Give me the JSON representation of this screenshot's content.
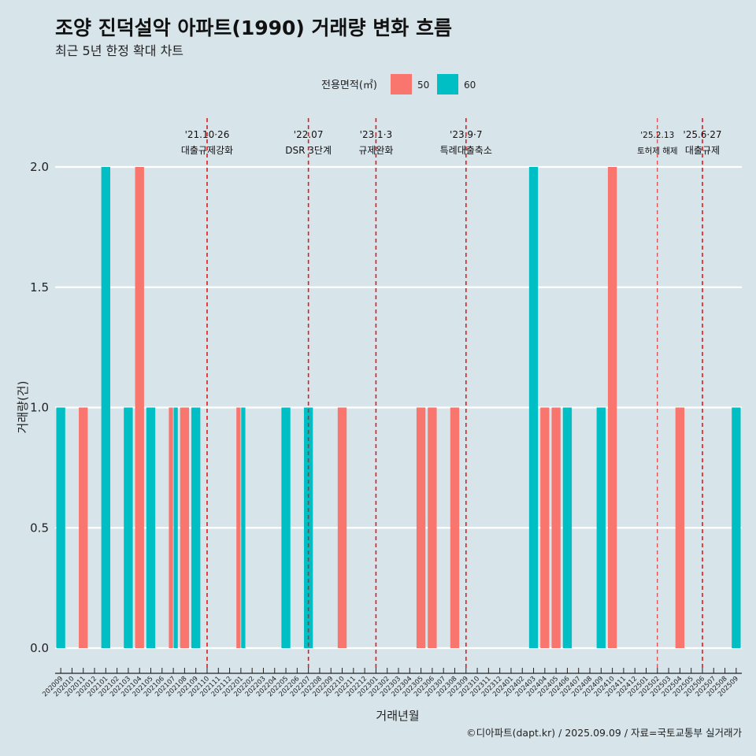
{
  "chart_data": {
    "type": "bar",
    "title": "조양 진덕설악 아파트(1990) 거래량 변화 흐름",
    "subtitle": "최근 5년 한정 확대 차트",
    "xlabel": "거래년월",
    "ylabel": "거래량(건)",
    "ylim": [
      0,
      2
    ],
    "yticks": [
      "0.0",
      "0.5",
      "1.0",
      "1.5",
      "2.0"
    ],
    "grid": true,
    "legend": {
      "title": "전용면적(㎡)",
      "placement": "top-center",
      "entries": [
        "50",
        "60"
      ]
    },
    "categories": [
      "202009",
      "202010",
      "202011",
      "202012",
      "202101",
      "202102",
      "202103",
      "202104",
      "202105",
      "202106",
      "202107",
      "202108",
      "202109",
      "202110",
      "202111",
      "202112",
      "202201",
      "202202",
      "202203",
      "202204",
      "202205",
      "202206",
      "202207",
      "202208",
      "202209",
      "202210",
      "202211",
      "202212",
      "202301",
      "202302",
      "202303",
      "202304",
      "202305",
      "202306",
      "202307",
      "202308",
      "202309",
      "202310",
      "202311",
      "202312",
      "202401",
      "202402",
      "202403",
      "202404",
      "202405",
      "202406",
      "202407",
      "202408",
      "202409",
      "202410",
      "202411",
      "202412",
      "202501",
      "202502",
      "202503",
      "202504",
      "202505",
      "202506",
      "202507",
      "202508",
      "202509"
    ],
    "series": [
      {
        "name": "50",
        "color": "#f8766d",
        "values": [
          0,
          0,
          1,
          0,
          0,
          0,
          0,
          2,
          0,
          0,
          1,
          1,
          0,
          0,
          0,
          0,
          1,
          0,
          0,
          0,
          0,
          0,
          0,
          0,
          0,
          1,
          0,
          0,
          0,
          0,
          0,
          0,
          1,
          1,
          0,
          1,
          0,
          0,
          0,
          0,
          0,
          0,
          0,
          1,
          1,
          0,
          0,
          0,
          0,
          2,
          0,
          0,
          0,
          0,
          0,
          1,
          0,
          0,
          0,
          0,
          0
        ]
      },
      {
        "name": "60",
        "color": "#00bfc4",
        "values": [
          1,
          0,
          0,
          0,
          2,
          0,
          1,
          0,
          1,
          0,
          1,
          0,
          1,
          0,
          0,
          0,
          1,
          0,
          0,
          0,
          1,
          0,
          1,
          0,
          0,
          0,
          0,
          0,
          0,
          0,
          0,
          0,
          0,
          0,
          0,
          0,
          0,
          0,
          0,
          0,
          0,
          0,
          2,
          0,
          0,
          1,
          0,
          0,
          1,
          0,
          0,
          0,
          0,
          0,
          0,
          0,
          0,
          0,
          0,
          0,
          1
        ]
      }
    ],
    "events": [
      {
        "at": "202110",
        "date": "'21.10·26",
        "label": "대출규제강화",
        "small": false
      },
      {
        "at": "202207",
        "date": "'22.07",
        "label": "DSR 3단계",
        "small": false
      },
      {
        "at": "202301",
        "date": "'23.1·3",
        "label": "규제완화",
        "small": false
      },
      {
        "at": "202309",
        "date": "'23.9·7",
        "label": "특례대출축소",
        "small": false
      },
      {
        "at": "202502",
        "date": "'25.2.13",
        "label": "토허제 해제",
        "small": true
      },
      {
        "at": "202506",
        "date": "'25.6·27",
        "label": "대출규제",
        "small": false
      }
    ],
    "event_color": "#e41a1c"
  },
  "caption": "©디아파트(dapt.kr) / 2025.09.09 / 자료=국토교통부 실거래가"
}
